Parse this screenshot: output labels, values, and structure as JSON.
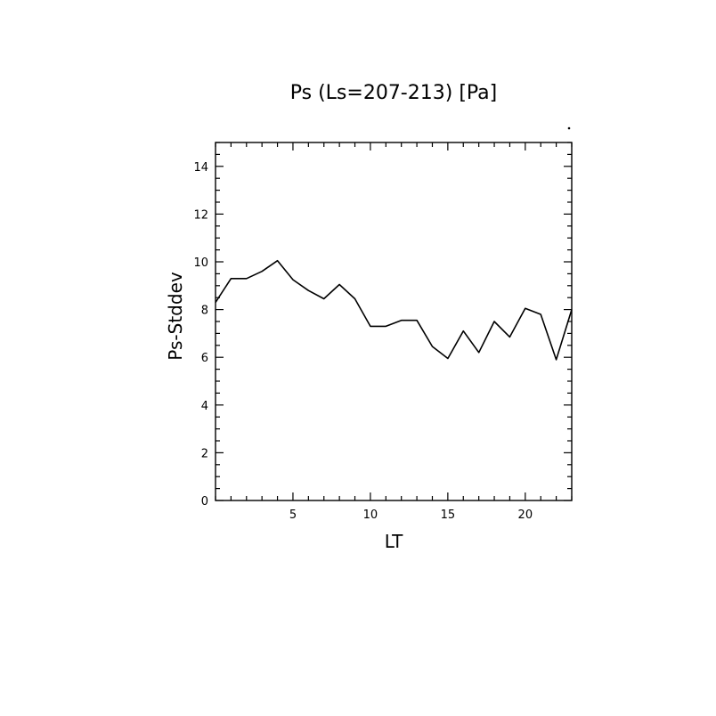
{
  "chart_data": {
    "type": "line",
    "title": "Ps (Ls=207-213) [Pa]",
    "xlabel": "LT",
    "ylabel": "Ps-Stddev",
    "xlim": [
      0,
      23
    ],
    "ylim": [
      0,
      15
    ],
    "xticks": [
      5,
      10,
      15,
      20
    ],
    "yticks": [
      0,
      2,
      4,
      6,
      8,
      10,
      12,
      14
    ],
    "xtick_labels": [
      "5",
      "10",
      "15",
      "20"
    ],
    "ytick_labels": [
      "0",
      "2",
      "4",
      "6",
      "8",
      "10",
      "12",
      "14"
    ],
    "grid": false,
    "legend": "none",
    "line_color": "#000000",
    "series": [
      {
        "x": [
          0,
          1,
          2,
          3,
          4,
          5,
          6,
          7,
          8,
          9,
          10,
          11,
          12,
          13,
          14,
          15,
          16,
          17,
          18,
          19,
          20,
          21,
          22,
          23
        ],
        "values": [
          8.3,
          9.3,
          9.3,
          9.6,
          10.05,
          9.25,
          8.8,
          8.45,
          9.05,
          8.45,
          7.3,
          7.3,
          7.55,
          7.55,
          6.45,
          5.95,
          7.1,
          6.2,
          7.5,
          6.85,
          8.05,
          7.8,
          5.9,
          8.0
        ]
      }
    ]
  }
}
